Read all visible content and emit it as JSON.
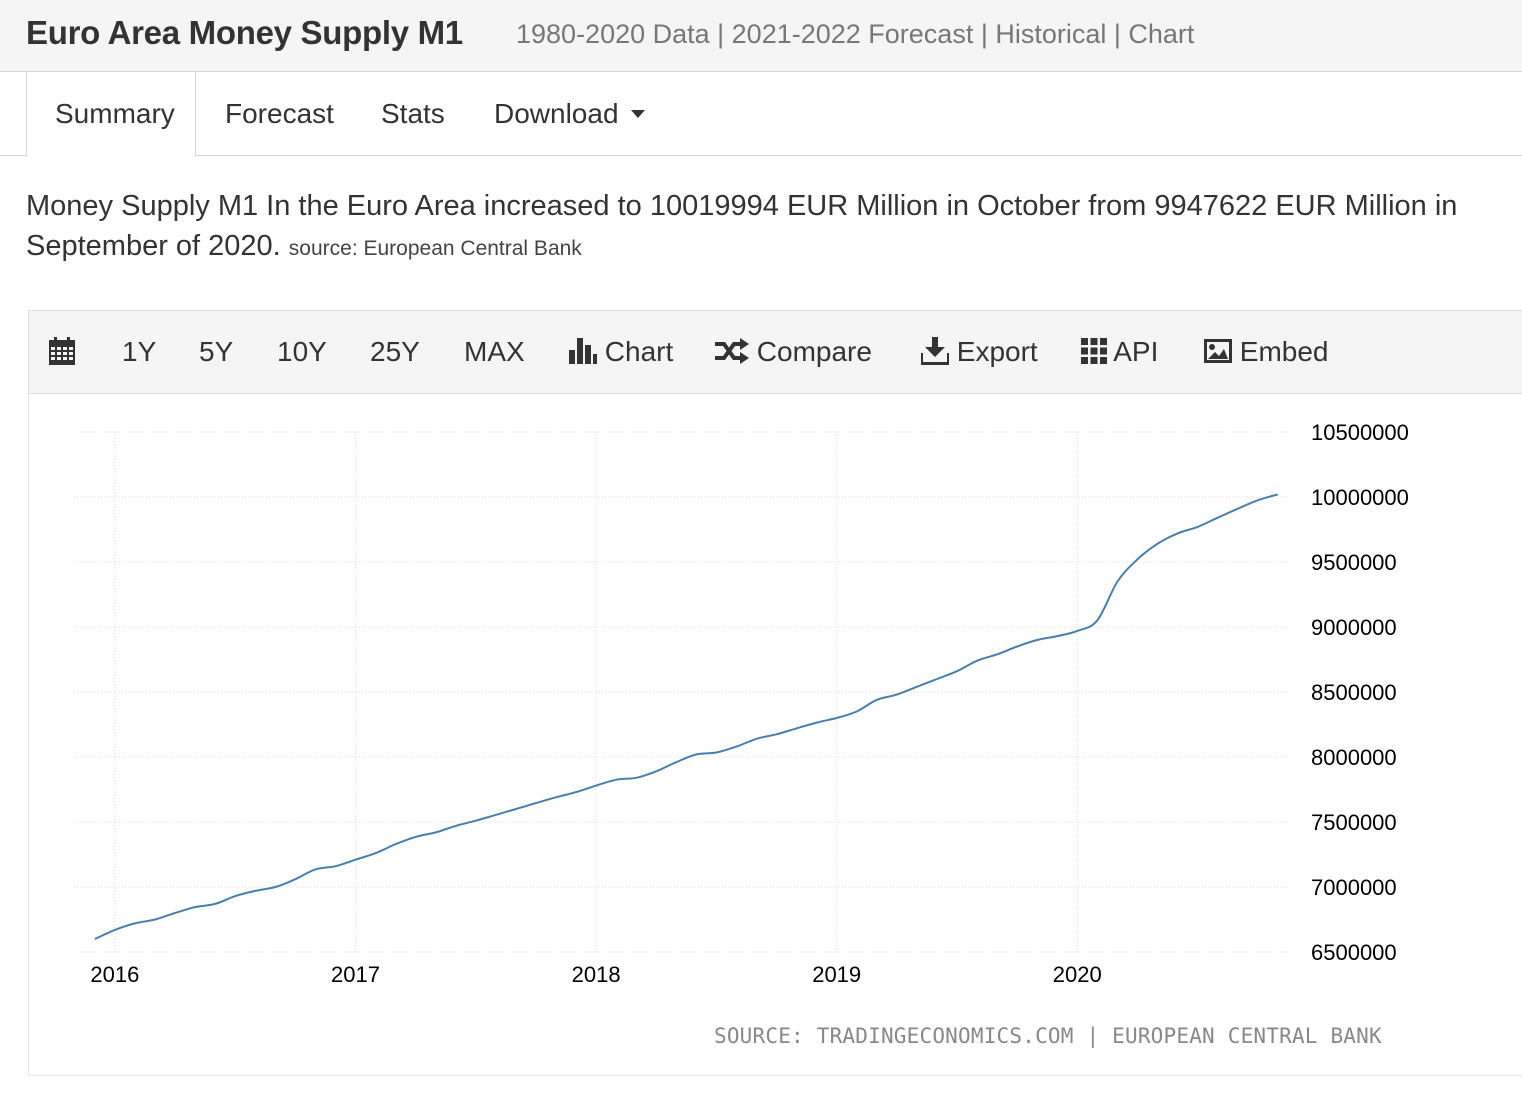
{
  "header": {
    "title": "Euro Area Money Supply M1",
    "subtitle": "1980-2020 Data | 2021-2022 Forecast | Historical | Chart"
  },
  "tabs": [
    {
      "label": "Summary"
    },
    {
      "label": "Forecast"
    },
    {
      "label": "Stats"
    },
    {
      "label": "Download"
    }
  ],
  "summary": {
    "text": "Money Supply M1 In the Euro Area increased to 10019994 EUR Million in October from 9947622 EUR Million in September of 2020.",
    "source": "source: European Central Bank"
  },
  "toolbar": {
    "calendar_icon": "calendar-icon",
    "ranges": [
      "1Y",
      "5Y",
      "10Y",
      "25Y",
      "MAX"
    ],
    "chart_label": "Chart",
    "compare_label": "Compare",
    "export_label": "Export",
    "api_label": "API",
    "embed_label": "Embed"
  },
  "colors": {
    "line": "#4a7fad",
    "grid": "#dddddd"
  },
  "chart_data": {
    "type": "line",
    "title": "",
    "xlabel": "",
    "ylabel": "",
    "x_ticks": [
      "2016",
      "2017",
      "2018",
      "2019",
      "2020"
    ],
    "y_ticks": [
      "6500000",
      "7000000",
      "7500000",
      "8000000",
      "8500000",
      "9000000",
      "9500000",
      "10000000",
      "10500000"
    ],
    "ylim": [
      6500000,
      10500000
    ],
    "xlim": [
      2015.83,
      2020.88
    ],
    "grid": true,
    "series": [
      {
        "name": "Money Supply M1",
        "x": [
          2015.917,
          2016.0,
          2016.083,
          2016.167,
          2016.25,
          2016.333,
          2016.417,
          2016.5,
          2016.583,
          2016.667,
          2016.75,
          2016.833,
          2016.917,
          2017.0,
          2017.083,
          2017.167,
          2017.25,
          2017.333,
          2017.417,
          2017.5,
          2017.583,
          2017.667,
          2017.75,
          2017.833,
          2017.917,
          2018.0,
          2018.083,
          2018.167,
          2018.25,
          2018.333,
          2018.417,
          2018.5,
          2018.583,
          2018.667,
          2018.75,
          2018.833,
          2018.917,
          2019.0,
          2019.083,
          2019.167,
          2019.25,
          2019.333,
          2019.417,
          2019.5,
          2019.583,
          2019.667,
          2019.75,
          2019.833,
          2019.917,
          2020.0,
          2020.083,
          2020.167,
          2020.25,
          2020.333,
          2020.417,
          2020.5,
          2020.583,
          2020.667,
          2020.75,
          2020.833
        ],
        "y": [
          6600000,
          6670000,
          6720000,
          6750000,
          6800000,
          6845000,
          6870000,
          6930000,
          6970000,
          7000000,
          7060000,
          7135000,
          7160000,
          7210000,
          7260000,
          7330000,
          7385000,
          7420000,
          7470000,
          7510000,
          7555000,
          7600000,
          7645000,
          7690000,
          7730000,
          7780000,
          7825000,
          7840000,
          7890000,
          7960000,
          8020000,
          8035000,
          8080000,
          8140000,
          8175000,
          8220000,
          8265000,
          8300000,
          8350000,
          8440000,
          8480000,
          8540000,
          8600000,
          8660000,
          8740000,
          8790000,
          8850000,
          8900000,
          8930000,
          8970000,
          9050000,
          9350000,
          9520000,
          9640000,
          9720000,
          9770000,
          9840000,
          9910000,
          9975000,
          10020000
        ]
      }
    ]
  },
  "footer": {
    "source": "SOURCE: TRADINGECONOMICS.COM | EUROPEAN CENTRAL BANK"
  }
}
